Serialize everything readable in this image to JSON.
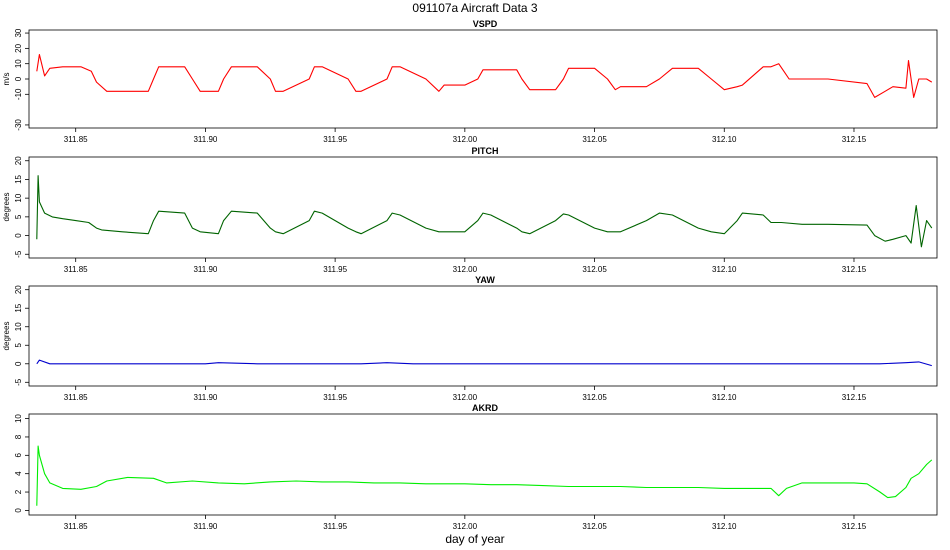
{
  "figure": {
    "title": "091107a   Aircraft Data 3",
    "xlabel": "day of year"
  },
  "chart_data": [
    {
      "type": "line",
      "title": "VSPD",
      "ylabel": "m/s",
      "color": "#ff0000",
      "xlim": [
        311.832,
        312.182
      ],
      "ylim": [
        -32,
        32
      ],
      "xticks": [
        "311.85",
        "311.90",
        "311.95",
        "312.00",
        "312.05",
        "312.10",
        "312.15"
      ],
      "yticks": [
        "-30",
        "-10",
        "0",
        "10",
        "20",
        "30"
      ],
      "series": [
        {
          "x": [
            311.835,
            311.836,
            311.838,
            311.84,
            311.845,
            311.852,
            311.856,
            311.858,
            311.862,
            311.868,
            311.878,
            311.88,
            311.882,
            311.892,
            311.895,
            311.898,
            311.905,
            311.907,
            311.91,
            311.92,
            311.925,
            311.927,
            311.93,
            311.94,
            311.942,
            311.945,
            311.955,
            311.958,
            311.96,
            311.97,
            311.972,
            311.975,
            311.985,
            311.99,
            311.992,
            312.0,
            312.005,
            312.007,
            312.01,
            312.02,
            312.022,
            312.025,
            312.035,
            312.038,
            312.04,
            312.05,
            312.055,
            312.058,
            312.06,
            312.07,
            312.075,
            312.08,
            312.09,
            312.095,
            312.1,
            312.105,
            312.107,
            312.115,
            312.118,
            312.121,
            312.123,
            312.125,
            312.13,
            312.14,
            312.155,
            312.158,
            312.162,
            312.165,
            312.17,
            312.171,
            312.173,
            312.175,
            312.178,
            312.18
          ],
          "y": [
            5,
            16,
            2,
            7,
            8,
            8,
            5,
            -2,
            -8,
            -8,
            -8,
            0,
            8,
            8,
            0,
            -8,
            -8,
            0,
            8,
            8,
            0,
            -8,
            -8,
            0,
            8,
            8,
            0,
            -8,
            -8,
            0,
            8,
            8,
            0,
            -8,
            -4,
            -4,
            0,
            6,
            6,
            6,
            0,
            -7,
            -7,
            0,
            7,
            7,
            0,
            -7,
            -5,
            -5,
            0,
            7,
            7,
            0,
            -7,
            -5,
            -4,
            8,
            8,
            10,
            5,
            0,
            0,
            0,
            -3,
            -12,
            -8,
            -5,
            -6,
            12,
            -12,
            0,
            0,
            -2
          ]
        }
      ]
    },
    {
      "type": "line",
      "title": "PITCH",
      "ylabel": "degrees",
      "color": "#006400",
      "xlim": [
        311.832,
        312.182
      ],
      "ylim": [
        -6,
        21
      ],
      "xticks": [
        "311.85",
        "311.90",
        "311.95",
        "312.00",
        "312.05",
        "312.10",
        "312.15"
      ],
      "yticks": [
        "-5",
        "0",
        "5",
        "10",
        "15",
        "20"
      ],
      "series": [
        {
          "x": [
            311.835,
            311.8355,
            311.836,
            311.838,
            311.841,
            311.845,
            311.85,
            311.855,
            311.858,
            311.86,
            311.868,
            311.878,
            311.88,
            311.882,
            311.892,
            311.895,
            311.898,
            311.905,
            311.907,
            311.91,
            311.92,
            311.925,
            311.927,
            311.93,
            311.94,
            311.942,
            311.945,
            311.955,
            311.958,
            311.96,
            311.97,
            311.972,
            311.975,
            311.985,
            311.99,
            311.992,
            312.0,
            312.005,
            312.007,
            312.01,
            312.02,
            312.022,
            312.025,
            312.035,
            312.038,
            312.04,
            312.05,
            312.055,
            312.058,
            312.06,
            312.07,
            312.075,
            312.08,
            312.09,
            312.095,
            312.1,
            312.105,
            312.107,
            312.115,
            312.118,
            312.122,
            312.13,
            312.14,
            312.155,
            312.158,
            312.162,
            312.165,
            312.17,
            312.172,
            312.174,
            312.176,
            312.178,
            312.18
          ],
          "y": [
            -1,
            16,
            9,
            6,
            5,
            4.5,
            4,
            3.5,
            2,
            1.5,
            1,
            0.5,
            4,
            6.5,
            6,
            2,
            1,
            0.5,
            4,
            6.5,
            6,
            2,
            1,
            0.5,
            4,
            6.5,
            6,
            2,
            1,
            0.5,
            4,
            6,
            5.5,
            2,
            1,
            1,
            1,
            4,
            6,
            5.5,
            2,
            1,
            0.5,
            4,
            5.8,
            5.5,
            2,
            1,
            1,
            1,
            4,
            6,
            5.5,
            2,
            1,
            0.5,
            4,
            6,
            5.5,
            3.5,
            3.5,
            3,
            3,
            2.8,
            0,
            -1.5,
            -1,
            0,
            -2,
            8,
            -3,
            4,
            2
          ]
        }
      ]
    },
    {
      "type": "line",
      "title": "YAW",
      "ylabel": "degrees",
      "color": "#0000cd",
      "xlim": [
        311.832,
        312.182
      ],
      "ylim": [
        -6,
        21
      ],
      "xticks": [
        "311.85",
        "311.90",
        "311.95",
        "312.00",
        "312.05",
        "312.10",
        "312.15"
      ],
      "yticks": [
        "-5",
        "0",
        "5",
        "10",
        "15",
        "20"
      ],
      "series": [
        {
          "x": [
            311.835,
            311.836,
            311.84,
            311.86,
            311.88,
            311.9,
            311.905,
            311.92,
            311.94,
            311.96,
            311.97,
            311.98,
            312.0,
            312.02,
            312.04,
            312.06,
            312.08,
            312.1,
            312.12,
            312.14,
            312.16,
            312.17,
            312.175,
            312.18
          ],
          "y": [
            0,
            1,
            0,
            0,
            0,
            0,
            0.3,
            0,
            0,
            0,
            0.3,
            0,
            0,
            0,
            0,
            0,
            0,
            0,
            0,
            0,
            0,
            0.3,
            0.5,
            -0.5
          ]
        }
      ]
    },
    {
      "type": "line",
      "title": "AKRD",
      "ylabel": "",
      "color": "#00ee00",
      "xlim": [
        311.832,
        312.182
      ],
      "ylim": [
        -0.5,
        10.5
      ],
      "xticks": [
        "311.85",
        "311.90",
        "311.95",
        "312.00",
        "312.05",
        "312.10",
        "312.15"
      ],
      "yticks": [
        "0",
        "2",
        "4",
        "6",
        "8",
        "10"
      ],
      "series": [
        {
          "x": [
            311.835,
            311.8355,
            311.836,
            311.838,
            311.84,
            311.845,
            311.852,
            311.858,
            311.862,
            311.87,
            311.88,
            311.885,
            311.895,
            311.905,
            311.915,
            311.925,
            311.935,
            311.945,
            311.955,
            311.965,
            311.975,
            311.985,
            312.0,
            312.01,
            312.02,
            312.03,
            312.04,
            312.05,
            312.06,
            312.07,
            312.08,
            312.09,
            312.1,
            312.11,
            312.118,
            312.121,
            312.124,
            312.13,
            312.14,
            312.15,
            312.155,
            312.16,
            312.163,
            312.166,
            312.17,
            312.172,
            312.175,
            312.178,
            312.18
          ],
          "y": [
            0.5,
            7,
            6,
            4,
            3,
            2.4,
            2.3,
            2.6,
            3.2,
            3.6,
            3.5,
            3.0,
            3.2,
            3.0,
            2.9,
            3.1,
            3.2,
            3.1,
            3.1,
            3.0,
            3.0,
            2.9,
            2.9,
            2.8,
            2.8,
            2.7,
            2.6,
            2.6,
            2.6,
            2.5,
            2.5,
            2.5,
            2.4,
            2.4,
            2.4,
            1.6,
            2.4,
            3.0,
            3.0,
            3.0,
            2.9,
            2.0,
            1.4,
            1.5,
            2.5,
            3.5,
            4.0,
            5.0,
            5.5
          ]
        }
      ]
    }
  ]
}
